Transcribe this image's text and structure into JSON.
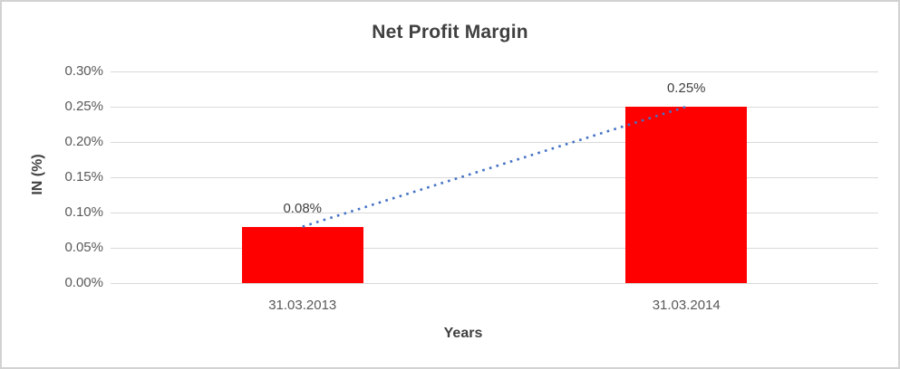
{
  "chart_data": {
    "type": "bar",
    "title": "Net Profit Margin",
    "xlabel": "Years",
    "ylabel": "IN (%)",
    "categories": [
      "31.03.2013",
      "31.03.2014"
    ],
    "values": [
      0.08,
      0.25
    ],
    "data_labels": [
      "0.08%",
      "0.25%"
    ],
    "y_ticks": [
      {
        "value": 0.3,
        "label": "0.30%"
      },
      {
        "value": 0.25,
        "label": "0.25%"
      },
      {
        "value": 0.2,
        "label": "0.20%"
      },
      {
        "value": 0.15,
        "label": "0.15%"
      },
      {
        "value": 0.1,
        "label": "0.10%"
      },
      {
        "value": 0.05,
        "label": "0.05%"
      },
      {
        "value": 0.0,
        "label": "0.00%"
      }
    ],
    "ylim": [
      0,
      0.3
    ],
    "grid": true,
    "legend": "none",
    "trendline": {
      "type": "linear",
      "style": "dotted",
      "from_value": 0.08,
      "to_value": 0.25
    },
    "colors": {
      "bar": "#FF0000",
      "trendline": "#4472C4",
      "gridline": "#D9D9D9",
      "tick_text": "#595959",
      "title_text": "#404040",
      "frame_border": "#D2D2D2",
      "background": "#FFFFFF"
    }
  }
}
